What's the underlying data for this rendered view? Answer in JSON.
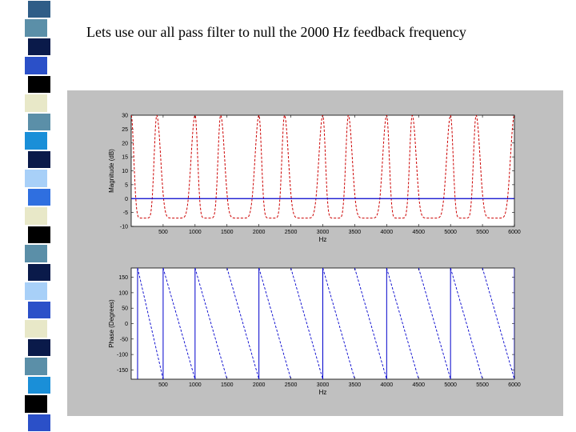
{
  "slide": {
    "title": "Lets use our all pass filter to null the 2000 Hz feedback frequency"
  },
  "decor": {
    "strip_colors": [
      "#2f5d87",
      "#5b8fa8",
      "#0a1a4a",
      "#2b50c8",
      "#000000",
      "#e8e8c8",
      "#5b8fa8",
      "#1a8fd8",
      "#0a1a4a",
      "#a8d0f8",
      "#2f6fe0",
      "#e8e8c8",
      "#000000",
      "#5b8fa8",
      "#0a1a4a",
      "#a8d0f8",
      "#2b50c8",
      "#e8e8c8",
      "#0a1a4a",
      "#5b8fa8",
      "#1a8fd8",
      "#000000",
      "#2b50c8"
    ]
  },
  "chart_data": [
    {
      "type": "line",
      "title": "",
      "xlabel": "Hz",
      "ylabel": "Magnitude (dB)",
      "xlim": [
        0,
        6000
      ],
      "ylim": [
        -10,
        30
      ],
      "x_ticks": [
        500,
        1000,
        1500,
        2000,
        2500,
        3000,
        3500,
        4000,
        4500,
        5000,
        5500,
        6000
      ],
      "y_ticks": [
        30,
        25,
        20,
        15,
        10,
        5,
        0,
        -5,
        -10
      ],
      "grid": false,
      "colors": {
        "comb": "#cc0000",
        "flat": "#0000cc"
      },
      "comb_peaks_hz": [
        0,
        400,
        1000,
        1400,
        2000,
        2400,
        3000,
        3400,
        4000,
        4400,
        5000,
        5400,
        6000
      ],
      "comb_min_db": -7,
      "comb_max_db": 30,
      "flat_db": 0
    },
    {
      "type": "line",
      "title": "",
      "xlabel": "Hz",
      "ylabel": "Phase (Degrees)",
      "xlim": [
        0,
        6000
      ],
      "ylim": [
        -180,
        180
      ],
      "x_ticks": [
        500,
        1000,
        1500,
        2000,
        2500,
        3000,
        3500,
        4000,
        4500,
        5000,
        5500,
        6000
      ],
      "y_ticks": [
        150,
        100,
        50,
        0,
        -50,
        -100,
        -150
      ],
      "grid": false,
      "colors": {
        "phase": "#0000cc"
      },
      "wrap_points_hz": [
        100,
        500,
        1000,
        1500,
        2000,
        2500,
        3000,
        3500,
        4000,
        4500,
        5000,
        5500,
        6000
      ]
    }
  ]
}
